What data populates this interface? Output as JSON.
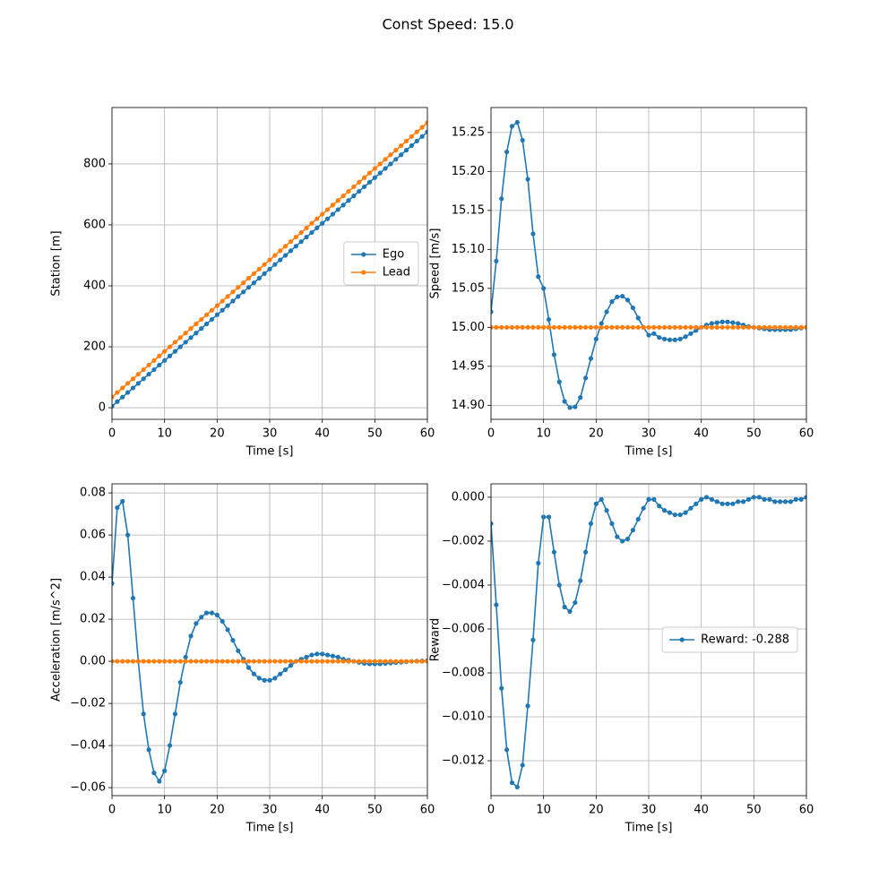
{
  "title": "Const Speed: 15.0",
  "chart_data": [
    {
      "type": "line",
      "xlabel": "Time [s]",
      "ylabel": "Station [m]",
      "grid": true,
      "legend": "center right",
      "x": [
        0,
        1,
        2,
        3,
        4,
        5,
        6,
        7,
        8,
        9,
        10,
        11,
        12,
        13,
        14,
        15,
        16,
        17,
        18,
        19,
        20,
        21,
        22,
        23,
        24,
        25,
        26,
        27,
        28,
        29,
        30,
        31,
        32,
        33,
        34,
        35,
        36,
        37,
        38,
        39,
        40,
        41,
        42,
        43,
        44,
        45,
        46,
        47,
        48,
        49,
        50,
        51,
        52,
        53,
        54,
        55,
        56,
        57,
        58,
        59,
        60
      ],
      "xlim": [
        0,
        60
      ],
      "xticks": [
        0,
        10,
        20,
        30,
        40,
        50,
        60
      ],
      "ylim": [
        -38,
        985
      ],
      "yticks": [
        0,
        200,
        400,
        600,
        800
      ],
      "series": [
        {
          "name": "Ego",
          "color": "#1f77b4",
          "values": [
            5,
            20,
            35,
            50,
            65,
            80,
            95,
            110,
            125,
            140,
            155,
            170,
            185,
            200,
            215,
            230,
            245,
            260,
            275,
            290,
            305,
            320,
            335,
            350,
            365,
            380,
            395,
            410,
            425,
            440,
            455,
            470,
            485,
            500,
            515,
            530,
            545,
            560,
            575,
            590,
            605,
            620,
            635,
            650,
            665,
            680,
            695,
            710,
            725,
            740,
            755,
            770,
            785,
            800,
            815,
            830,
            845,
            860,
            875,
            890,
            905
          ]
        },
        {
          "name": "Lead",
          "color": "#ff7f0e",
          "values": [
            35,
            50,
            65,
            80,
            95,
            110,
            125,
            140,
            155,
            170,
            185,
            200,
            215,
            230,
            245,
            260,
            275,
            290,
            305,
            320,
            335,
            350,
            365,
            380,
            395,
            410,
            425,
            440,
            455,
            470,
            485,
            500,
            515,
            530,
            545,
            560,
            575,
            590,
            605,
            620,
            635,
            650,
            665,
            680,
            695,
            710,
            725,
            740,
            755,
            770,
            785,
            800,
            815,
            830,
            845,
            860,
            875,
            890,
            905,
            920,
            935
          ]
        }
      ]
    },
    {
      "type": "line",
      "xlabel": "Time [s]",
      "ylabel": "Speed [m/s]",
      "grid": true,
      "x": [
        0,
        1,
        2,
        3,
        4,
        5,
        6,
        7,
        8,
        9,
        10,
        11,
        12,
        13,
        14,
        15,
        16,
        17,
        18,
        19,
        20,
        21,
        22,
        23,
        24,
        25,
        26,
        27,
        28,
        29,
        30,
        31,
        32,
        33,
        34,
        35,
        36,
        37,
        38,
        39,
        40,
        41,
        42,
        43,
        44,
        45,
        46,
        47,
        48,
        49,
        50,
        51,
        52,
        53,
        54,
        55,
        56,
        57,
        58,
        59,
        60
      ],
      "xlim": [
        0,
        60
      ],
      "xticks": [
        0,
        10,
        20,
        30,
        40,
        50,
        60
      ],
      "ylim": [
        14.882,
        15.282
      ],
      "yticks": [
        {
          "value": 14.9,
          "label": "14.90"
        },
        14.95,
        {
          "value": 15.0,
          "label": "15.00"
        },
        15.05,
        {
          "value": 15.1,
          "label": "15.10"
        },
        15.15,
        {
          "value": 15.2,
          "label": "15.20"
        },
        15.25
      ],
      "series": [
        {
          "name": "Ego",
          "color": "#1f77b4",
          "values": [
            15.02,
            15.085,
            15.165,
            15.225,
            15.258,
            15.263,
            15.24,
            15.19,
            15.12,
            15.065,
            15.05,
            15.01,
            14.965,
            14.93,
            14.905,
            14.897,
            14.898,
            14.91,
            14.935,
            14.96,
            14.985,
            15.005,
            15.02,
            15.033,
            15.039,
            15.04,
            15.035,
            15.025,
            15.012,
            15.0,
            14.99,
            14.992,
            14.987,
            14.985,
            14.984,
            14.984,
            14.985,
            14.988,
            14.992,
            14.996,
            15.0,
            15.003,
            15.005,
            15.006,
            15.007,
            15.007,
            15.006,
            15.005,
            15.003,
            15.001,
            15.0,
            14.999,
            14.998,
            14.997,
            14.997,
            14.997,
            14.997,
            14.997,
            14.998,
            14.999,
            15.0
          ]
        },
        {
          "name": "Lead",
          "color": "#ff7f0e",
          "values": [
            15,
            15,
            15,
            15,
            15,
            15,
            15,
            15,
            15,
            15,
            15,
            15,
            15,
            15,
            15,
            15,
            15,
            15,
            15,
            15,
            15,
            15,
            15,
            15,
            15,
            15,
            15,
            15,
            15,
            15,
            15,
            15,
            15,
            15,
            15,
            15,
            15,
            15,
            15,
            15,
            15,
            15,
            15,
            15,
            15,
            15,
            15,
            15,
            15,
            15,
            15,
            15,
            15,
            15,
            15,
            15,
            15,
            15,
            15,
            15,
            15
          ]
        }
      ]
    },
    {
      "type": "line",
      "xlabel": "Time [s]",
      "ylabel": "Acceleration [m/s^2]",
      "grid": true,
      "x": [
        0,
        1,
        2,
        3,
        4,
        5,
        6,
        7,
        8,
        9,
        10,
        11,
        12,
        13,
        14,
        15,
        16,
        17,
        18,
        19,
        20,
        21,
        22,
        23,
        24,
        25,
        26,
        27,
        28,
        29,
        30,
        31,
        32,
        33,
        34,
        35,
        36,
        37,
        38,
        39,
        40,
        41,
        42,
        43,
        44,
        45,
        46,
        47,
        48,
        49,
        50,
        51,
        52,
        53,
        54,
        55,
        56,
        57,
        58,
        59,
        60
      ],
      "xlim": [
        0,
        60
      ],
      "xticks": [
        0,
        10,
        20,
        30,
        40,
        50,
        60
      ],
      "ylim": [
        -0.0638,
        0.0843
      ],
      "yticks": [
        {
          "value": -0.06,
          "label": "−0.06"
        },
        {
          "value": -0.04,
          "label": "−0.04"
        },
        {
          "value": -0.02,
          "label": "−0.02"
        },
        {
          "value": 0,
          "label": "0.00"
        },
        0.02,
        0.04,
        0.06,
        0.08
      ],
      "series": [
        {
          "name": "Ego",
          "color": "#1f77b4",
          "values": [
            0.037,
            0.073,
            0.076,
            0.06,
            0.03,
            0.0,
            -0.025,
            -0.042,
            -0.053,
            -0.057,
            -0.052,
            -0.04,
            -0.025,
            -0.01,
            0.002,
            0.012,
            0.018,
            0.021,
            0.023,
            0.023,
            0.022,
            0.019,
            0.015,
            0.01,
            0.005,
            0.001,
            -0.003,
            -0.006,
            -0.008,
            -0.009,
            -0.009,
            -0.008,
            -0.006,
            -0.004,
            -0.002,
            0.0,
            0.001,
            0.002,
            0.003,
            0.0035,
            0.0035,
            0.003,
            0.0025,
            0.002,
            0.001,
            0.0005,
            0.0,
            -0.0005,
            -0.001,
            -0.0012,
            -0.0012,
            -0.0012,
            -0.001,
            -0.0008,
            -0.0006,
            -0.0004,
            -0.0002,
            0.0,
            0.0001,
            0.0002,
            0.0003
          ]
        },
        {
          "name": "Lead",
          "color": "#ff7f0e",
          "values": [
            0,
            0,
            0,
            0,
            0,
            0,
            0,
            0,
            0,
            0,
            0,
            0,
            0,
            0,
            0,
            0,
            0,
            0,
            0,
            0,
            0,
            0,
            0,
            0,
            0,
            0,
            0,
            0,
            0,
            0,
            0,
            0,
            0,
            0,
            0,
            0,
            0,
            0,
            0,
            0,
            0,
            0,
            0,
            0,
            0,
            0,
            0,
            0,
            0,
            0,
            0,
            0,
            0,
            0,
            0,
            0,
            0,
            0,
            0,
            0,
            0
          ]
        }
      ]
    },
    {
      "type": "line",
      "xlabel": "Time [s]",
      "ylabel": "Reward",
      "grid": true,
      "legend": "center right",
      "x": [
        0,
        1,
        2,
        3,
        4,
        5,
        6,
        7,
        8,
        9,
        10,
        11,
        12,
        13,
        14,
        15,
        16,
        17,
        18,
        19,
        20,
        21,
        22,
        23,
        24,
        25,
        26,
        27,
        28,
        29,
        30,
        31,
        32,
        33,
        34,
        35,
        36,
        37,
        38,
        39,
        40,
        41,
        42,
        43,
        44,
        45,
        46,
        47,
        48,
        49,
        50,
        51,
        52,
        53,
        54,
        55,
        56,
        57,
        58,
        59,
        60
      ],
      "xlim": [
        0,
        60
      ],
      "xticks": [
        0,
        10,
        20,
        30,
        40,
        50,
        60
      ],
      "ylim": [
        -0.01359,
        0.00061
      ],
      "yticks": [
        {
          "value": -0.012,
          "label": "−0.012"
        },
        {
          "value": -0.01,
          "label": "−0.010"
        },
        {
          "value": -0.008,
          "label": "−0.008"
        },
        {
          "value": -0.006,
          "label": "−0.006"
        },
        {
          "value": -0.004,
          "label": "−0.004"
        },
        {
          "value": -0.002,
          "label": "−0.002"
        },
        {
          "value": 0,
          "label": "0.000"
        }
      ],
      "series": [
        {
          "name": "Reward: -0.288",
          "color": "#1f77b4",
          "values": [
            -0.0012,
            -0.0049,
            -0.0087,
            -0.0115,
            -0.013,
            -0.0132,
            -0.0122,
            -0.0095,
            -0.0065,
            -0.003,
            -0.0009,
            -0.0009,
            -0.0025,
            -0.004,
            -0.005,
            -0.0052,
            -0.0048,
            -0.0038,
            -0.0025,
            -0.0012,
            -0.0003,
            -0.0001,
            -0.0006,
            -0.0012,
            -0.0018,
            -0.002,
            -0.0019,
            -0.0015,
            -0.001,
            -0.0005,
            -0.0001,
            -0.0001,
            -0.0004,
            -0.0006,
            -0.0007,
            -0.0008,
            -0.0008,
            -0.0007,
            -0.0005,
            -0.0003,
            -0.0001,
            0.0,
            -0.0001,
            -0.0002,
            -0.0003,
            -0.0003,
            -0.0003,
            -0.0002,
            -0.0002,
            -0.0001,
            0.0,
            0.0,
            -0.0001,
            -0.0001,
            -0.0002,
            -0.0002,
            -0.0002,
            -0.0002,
            -0.0001,
            -0.0001,
            0.0
          ]
        }
      ]
    }
  ]
}
